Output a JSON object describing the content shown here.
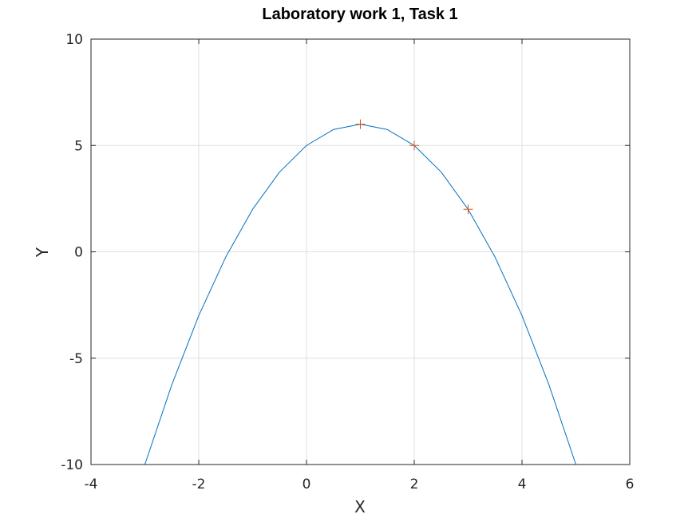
{
  "chart_data": {
    "type": "line",
    "title": "Laboratory work 1, Task 1",
    "xlabel": "X",
    "ylabel": "Y",
    "xlim": [
      -4,
      6
    ],
    "ylim": [
      -10,
      10
    ],
    "xticks": [
      "-4",
      "-2",
      "0",
      "2",
      "4",
      "6"
    ],
    "yticks": [
      "-10",
      "-5",
      "0",
      "5",
      "10"
    ],
    "grid": true,
    "series": [
      {
        "kind": "line",
        "color": "#0072bd",
        "x": [
          -3,
          -2.5,
          -2,
          -1.5,
          -1,
          -0.5,
          0,
          0.5,
          1,
          1.5,
          2,
          2.5,
          3,
          3.5,
          4,
          4.5,
          5
        ],
        "y": [
          -10,
          -6.25,
          -3,
          -0.25,
          2,
          3.75,
          5,
          5.75,
          6,
          5.75,
          5,
          3.75,
          2,
          -0.25,
          -3,
          -6.25,
          -10
        ]
      },
      {
        "kind": "markers",
        "marker": "plus",
        "color": "#d95319",
        "x": [
          1,
          2,
          3
        ],
        "y": [
          6,
          5,
          2
        ]
      }
    ]
  },
  "colors": {
    "axes": "#262626",
    "grid": "#dfdfdf",
    "background": "#ffffff"
  }
}
